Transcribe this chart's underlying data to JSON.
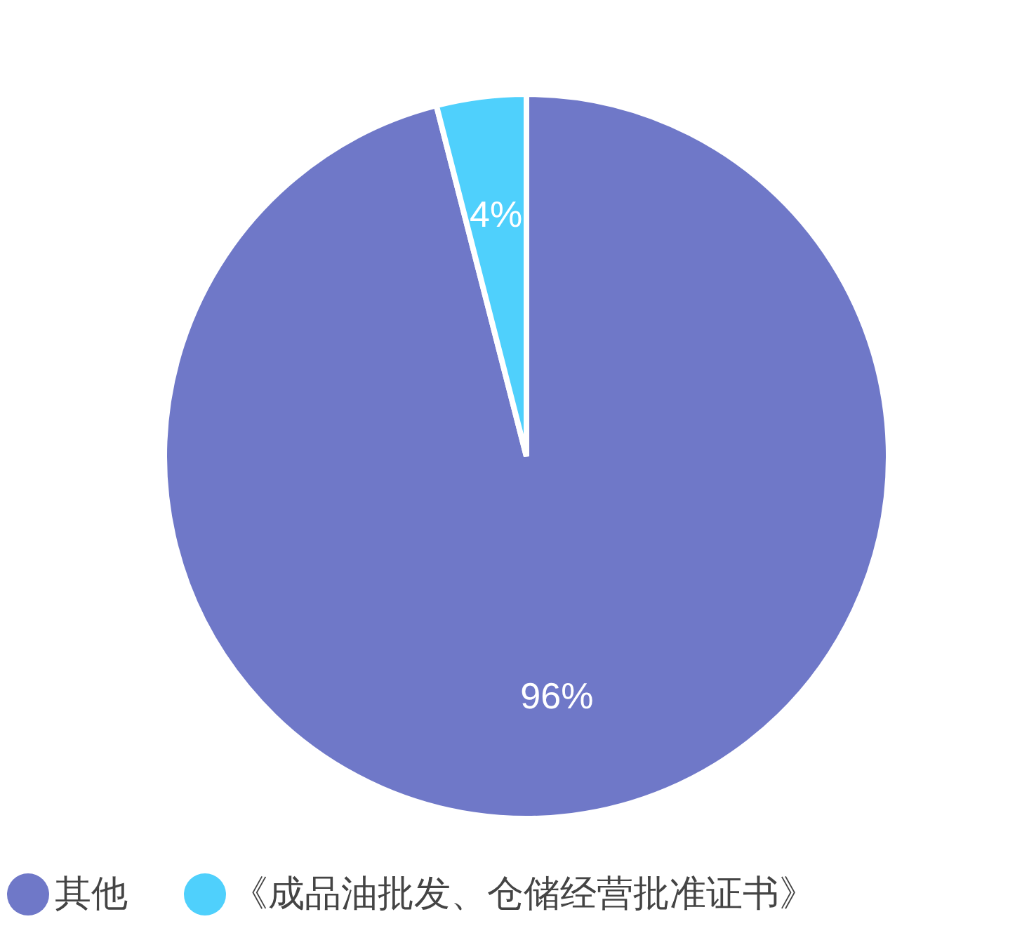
{
  "chart_data": {
    "type": "pie",
    "categories": [
      "其他",
      "《成品油批发、仓储经营批准证书》"
    ],
    "values": [
      96,
      4
    ],
    "colors": [
      "#6f78c8",
      "#4fd0fc"
    ],
    "value_labels": [
      "96%",
      "4%"
    ],
    "legend": "bottom"
  }
}
